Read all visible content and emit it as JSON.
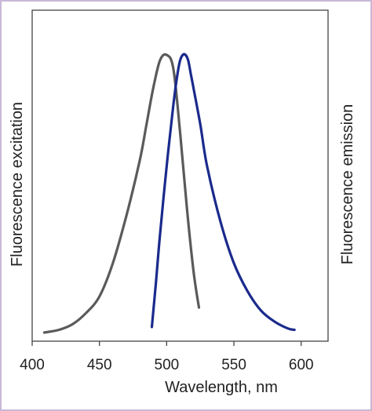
{
  "chart_data": {
    "type": "line",
    "title": "",
    "xlabel": "Wavelength, nm",
    "ylabel_left": "Fluorescence excitation",
    "ylabel_right": "Fluorescence emission",
    "xlim": [
      400,
      620
    ],
    "ylim": [
      0,
      1
    ],
    "xticks": [
      "400",
      "450",
      "500",
      "550",
      "600"
    ],
    "grid": false,
    "series": [
      {
        "color": "#5a5a5a",
        "x": [
          409,
          420,
          430,
          440,
          450,
          460,
          470,
          480,
          485,
          490,
          495,
          500,
          505,
          510,
          515,
          520,
          524
        ],
        "y": [
          0.0,
          0.01,
          0.03,
          0.07,
          0.13,
          0.25,
          0.42,
          0.62,
          0.75,
          0.88,
          0.98,
          1.0,
          0.95,
          0.72,
          0.45,
          0.22,
          0.09
        ]
      },
      {
        "color": "#1a2a8c",
        "x": [
          489,
          492,
          495,
          500,
          505,
          508,
          510,
          512,
          514,
          516,
          518,
          520,
          525,
          530,
          540,
          550,
          560,
          570,
          580,
          590,
          595
        ],
        "y": [
          0.02,
          0.18,
          0.35,
          0.6,
          0.82,
          0.93,
          0.98,
          1.0,
          1.0,
          0.98,
          0.93,
          0.88,
          0.75,
          0.6,
          0.4,
          0.25,
          0.15,
          0.08,
          0.04,
          0.015,
          0.01
        ]
      }
    ]
  }
}
